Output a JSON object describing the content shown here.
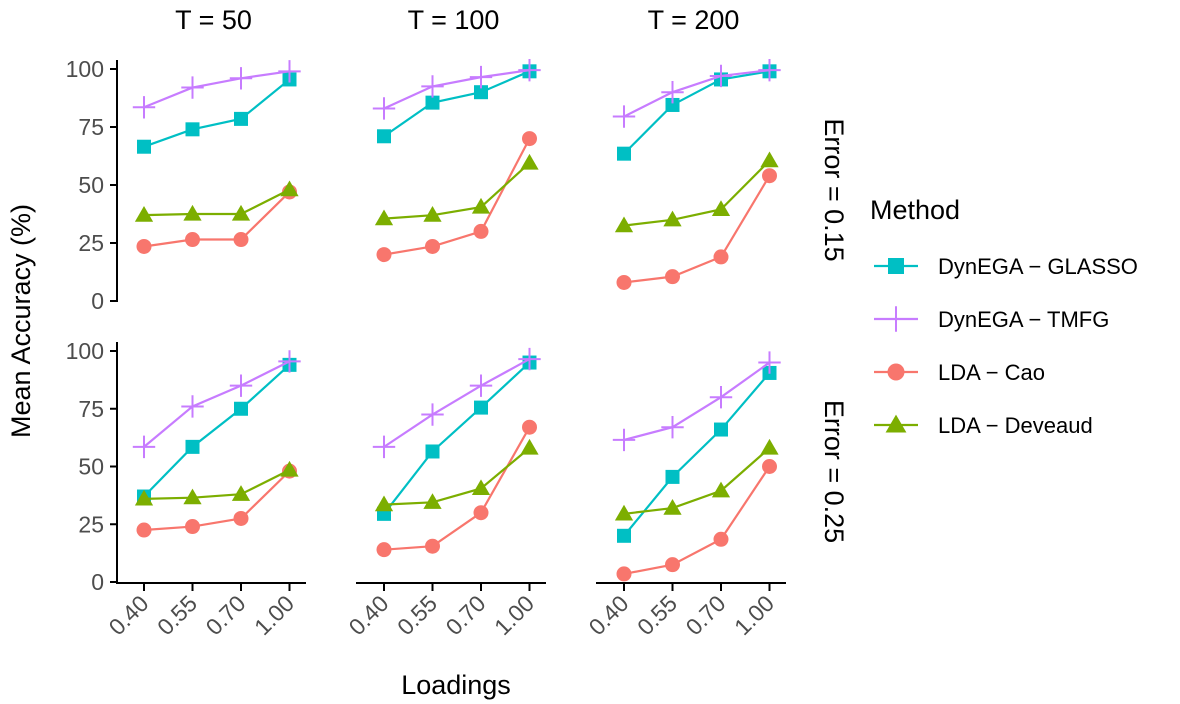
{
  "chart_data": {
    "type": "line",
    "layout": "facet-grid",
    "ylabel": "Mean Accuracy (%)",
    "xlabel": "Loadings",
    "ylim": [
      0,
      100
    ],
    "yticks": [
      "0",
      "25",
      "50",
      "75",
      "100"
    ],
    "categories": [
      "0.40",
      "0.55",
      "0.70",
      "1.00"
    ],
    "columns": [
      "T = 50",
      "T = 100",
      "T = 200"
    ],
    "rows": [
      "Error = 0.15",
      "Error = 0.25"
    ],
    "legend": {
      "title": "Method",
      "position": "right",
      "entries": [
        "DynEGA − GLASSO",
        "DynEGA − TMFG",
        "LDA − Cao",
        "LDA − Deveaud"
      ]
    },
    "series_styles": [
      {
        "name": "DynEGA − GLASSO",
        "color": "#00BFC4",
        "marker": "square"
      },
      {
        "name": "DynEGA − TMFG",
        "color": "#C77CFF",
        "marker": "plus"
      },
      {
        "name": "LDA − Cao",
        "color": "#F8766D",
        "marker": "circle"
      },
      {
        "name": "LDA − Deveaud",
        "color": "#7CAE00",
        "marker": "triangle"
      }
    ],
    "panels": [
      {
        "row": 0,
        "col": 0,
        "series": [
          {
            "name": "DynEGA − GLASSO",
            "values": [
              66.5,
              74,
              78.5,
              95.5
            ]
          },
          {
            "name": "DynEGA − TMFG",
            "values": [
              83.5,
              92,
              96,
              99
            ]
          },
          {
            "name": "LDA − Cao",
            "values": [
              23.5,
              26.5,
              26.5,
              47
            ]
          },
          {
            "name": "LDA − Deveaud",
            "values": [
              37,
              37.5,
              37.5,
              48
            ]
          }
        ]
      },
      {
        "row": 0,
        "col": 1,
        "series": [
          {
            "name": "DynEGA − GLASSO",
            "values": [
              71,
              85.5,
              90,
              99
            ]
          },
          {
            "name": "DynEGA − TMFG",
            "values": [
              83,
              92.5,
              96.5,
              99.5
            ]
          },
          {
            "name": "LDA − Cao",
            "values": [
              20,
              23.5,
              30,
              70
            ]
          },
          {
            "name": "LDA − Deveaud",
            "values": [
              35.5,
              37,
              40.5,
              59.5
            ]
          }
        ]
      },
      {
        "row": 0,
        "col": 2,
        "series": [
          {
            "name": "DynEGA − GLASSO",
            "values": [
              63.5,
              84.5,
              95.5,
              99
            ]
          },
          {
            "name": "DynEGA − TMFG",
            "values": [
              79.5,
              90,
              97,
              99.5
            ]
          },
          {
            "name": "LDA − Cao",
            "values": [
              8,
              10.5,
              19,
              54
            ]
          },
          {
            "name": "LDA − Deveaud",
            "values": [
              32.5,
              35,
              39.5,
              60.5
            ]
          }
        ]
      },
      {
        "row": 1,
        "col": 0,
        "series": [
          {
            "name": "DynEGA − GLASSO",
            "values": [
              37,
              58.5,
              75,
              94
            ]
          },
          {
            "name": "DynEGA − TMFG",
            "values": [
              58.5,
              76,
              85,
              95.5
            ]
          },
          {
            "name": "LDA − Cao",
            "values": [
              22.5,
              24,
              27.5,
              48
            ]
          },
          {
            "name": "LDA − Deveaud",
            "values": [
              36,
              36.5,
              38,
              48.5
            ]
          }
        ]
      },
      {
        "row": 1,
        "col": 1,
        "series": [
          {
            "name": "DynEGA − GLASSO",
            "values": [
              29.5,
              56.5,
              75.5,
              95
            ]
          },
          {
            "name": "DynEGA − TMFG",
            "values": [
              58.5,
              72.5,
              85,
              96.5
            ]
          },
          {
            "name": "LDA − Cao",
            "values": [
              14,
              15.5,
              30,
              67
            ]
          },
          {
            "name": "LDA − Deveaud",
            "values": [
              33.5,
              34.5,
              40.5,
              58
            ]
          }
        ]
      },
      {
        "row": 1,
        "col": 2,
        "series": [
          {
            "name": "DynEGA − GLASSO",
            "values": [
              20,
              45.5,
              66,
              90.5
            ]
          },
          {
            "name": "DynEGA − TMFG",
            "values": [
              61.5,
              67,
              80,
              95
            ]
          },
          {
            "name": "LDA − Cao",
            "values": [
              3.5,
              7.5,
              18.5,
              50
            ]
          },
          {
            "name": "LDA − Deveaud",
            "values": [
              29.5,
              32,
              39.5,
              58
            ]
          }
        ]
      }
    ]
  }
}
